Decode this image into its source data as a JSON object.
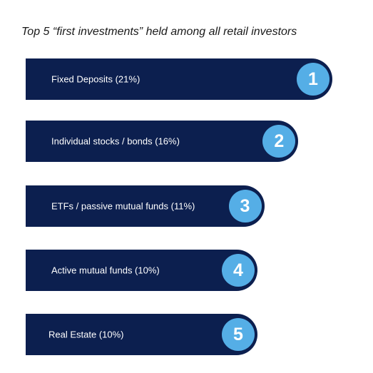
{
  "chart_data": {
    "type": "bar",
    "title": "Top 5 “first investments” held among all retail investors",
    "orientation": "horizontal",
    "categories": [
      "Fixed Deposits",
      "Individual stocks / bonds",
      "ETFs / passive mutual funds",
      "Active mutual funds",
      "Real Estate"
    ],
    "values": [
      21,
      16,
      11,
      10,
      10
    ],
    "unit": "%",
    "items": [
      {
        "rank": "1",
        "label": "Fixed Deposits (21%)",
        "value": 21
      },
      {
        "rank": "2",
        "label": "Individual stocks / bonds (16%)",
        "value": 16
      },
      {
        "rank": "3",
        "label": "ETFs / passive mutual funds (11%)",
        "value": 11
      },
      {
        "rank": "4",
        "label": "Active mutual funds (10%)",
        "value": 10
      },
      {
        "rank": "5",
        "label": "Real Estate (10%)",
        "value": 10
      }
    ],
    "colors": {
      "bar": "#0c1f4f",
      "badge": "#55aee6",
      "label_text": "#ffffff"
    }
  }
}
